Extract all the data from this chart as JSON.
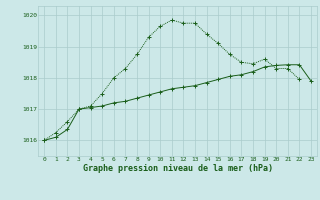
{
  "title": "Graphe pression niveau de la mer (hPa)",
  "background_color": "#cce8e8",
  "grid_color": "#aacccc",
  "line_color": "#1a5e1a",
  "x_values": [
    0,
    1,
    2,
    3,
    4,
    5,
    6,
    7,
    8,
    9,
    10,
    11,
    12,
    13,
    14,
    15,
    16,
    17,
    18,
    19,
    20,
    21,
    22,
    23
  ],
  "line1_y": [
    1016.0,
    1016.25,
    1016.6,
    1017.0,
    1017.1,
    1017.5,
    1018.0,
    1018.3,
    1018.75,
    1019.3,
    1019.65,
    1019.85,
    1019.75,
    1019.75,
    1019.4,
    1019.1,
    1018.75,
    1018.5,
    1018.45,
    1018.6,
    1018.3,
    1018.3,
    1017.95,
    null
  ],
  "line2_y": [
    1016.0,
    1016.1,
    1016.35,
    1017.0,
    1017.05,
    1017.1,
    1017.2,
    1017.25,
    1017.35,
    1017.45,
    1017.55,
    1017.65,
    1017.7,
    1017.75,
    1017.85,
    1017.95,
    1018.05,
    1018.1,
    1018.2,
    1018.35,
    1018.4,
    1018.42,
    1018.42,
    1017.9
  ],
  "ylim": [
    1015.5,
    1020.3
  ],
  "xlim": [
    -0.5,
    23.5
  ],
  "yticks": [
    1016,
    1017,
    1018,
    1019,
    1020
  ],
  "xticks": [
    0,
    1,
    2,
    3,
    4,
    5,
    6,
    7,
    8,
    9,
    10,
    11,
    12,
    13,
    14,
    15,
    16,
    17,
    18,
    19,
    20,
    21,
    22,
    23
  ],
  "tick_fontsize": 4.5,
  "title_fontsize": 6.0,
  "marker": "+",
  "marker_size": 2.5,
  "lw": 0.7
}
